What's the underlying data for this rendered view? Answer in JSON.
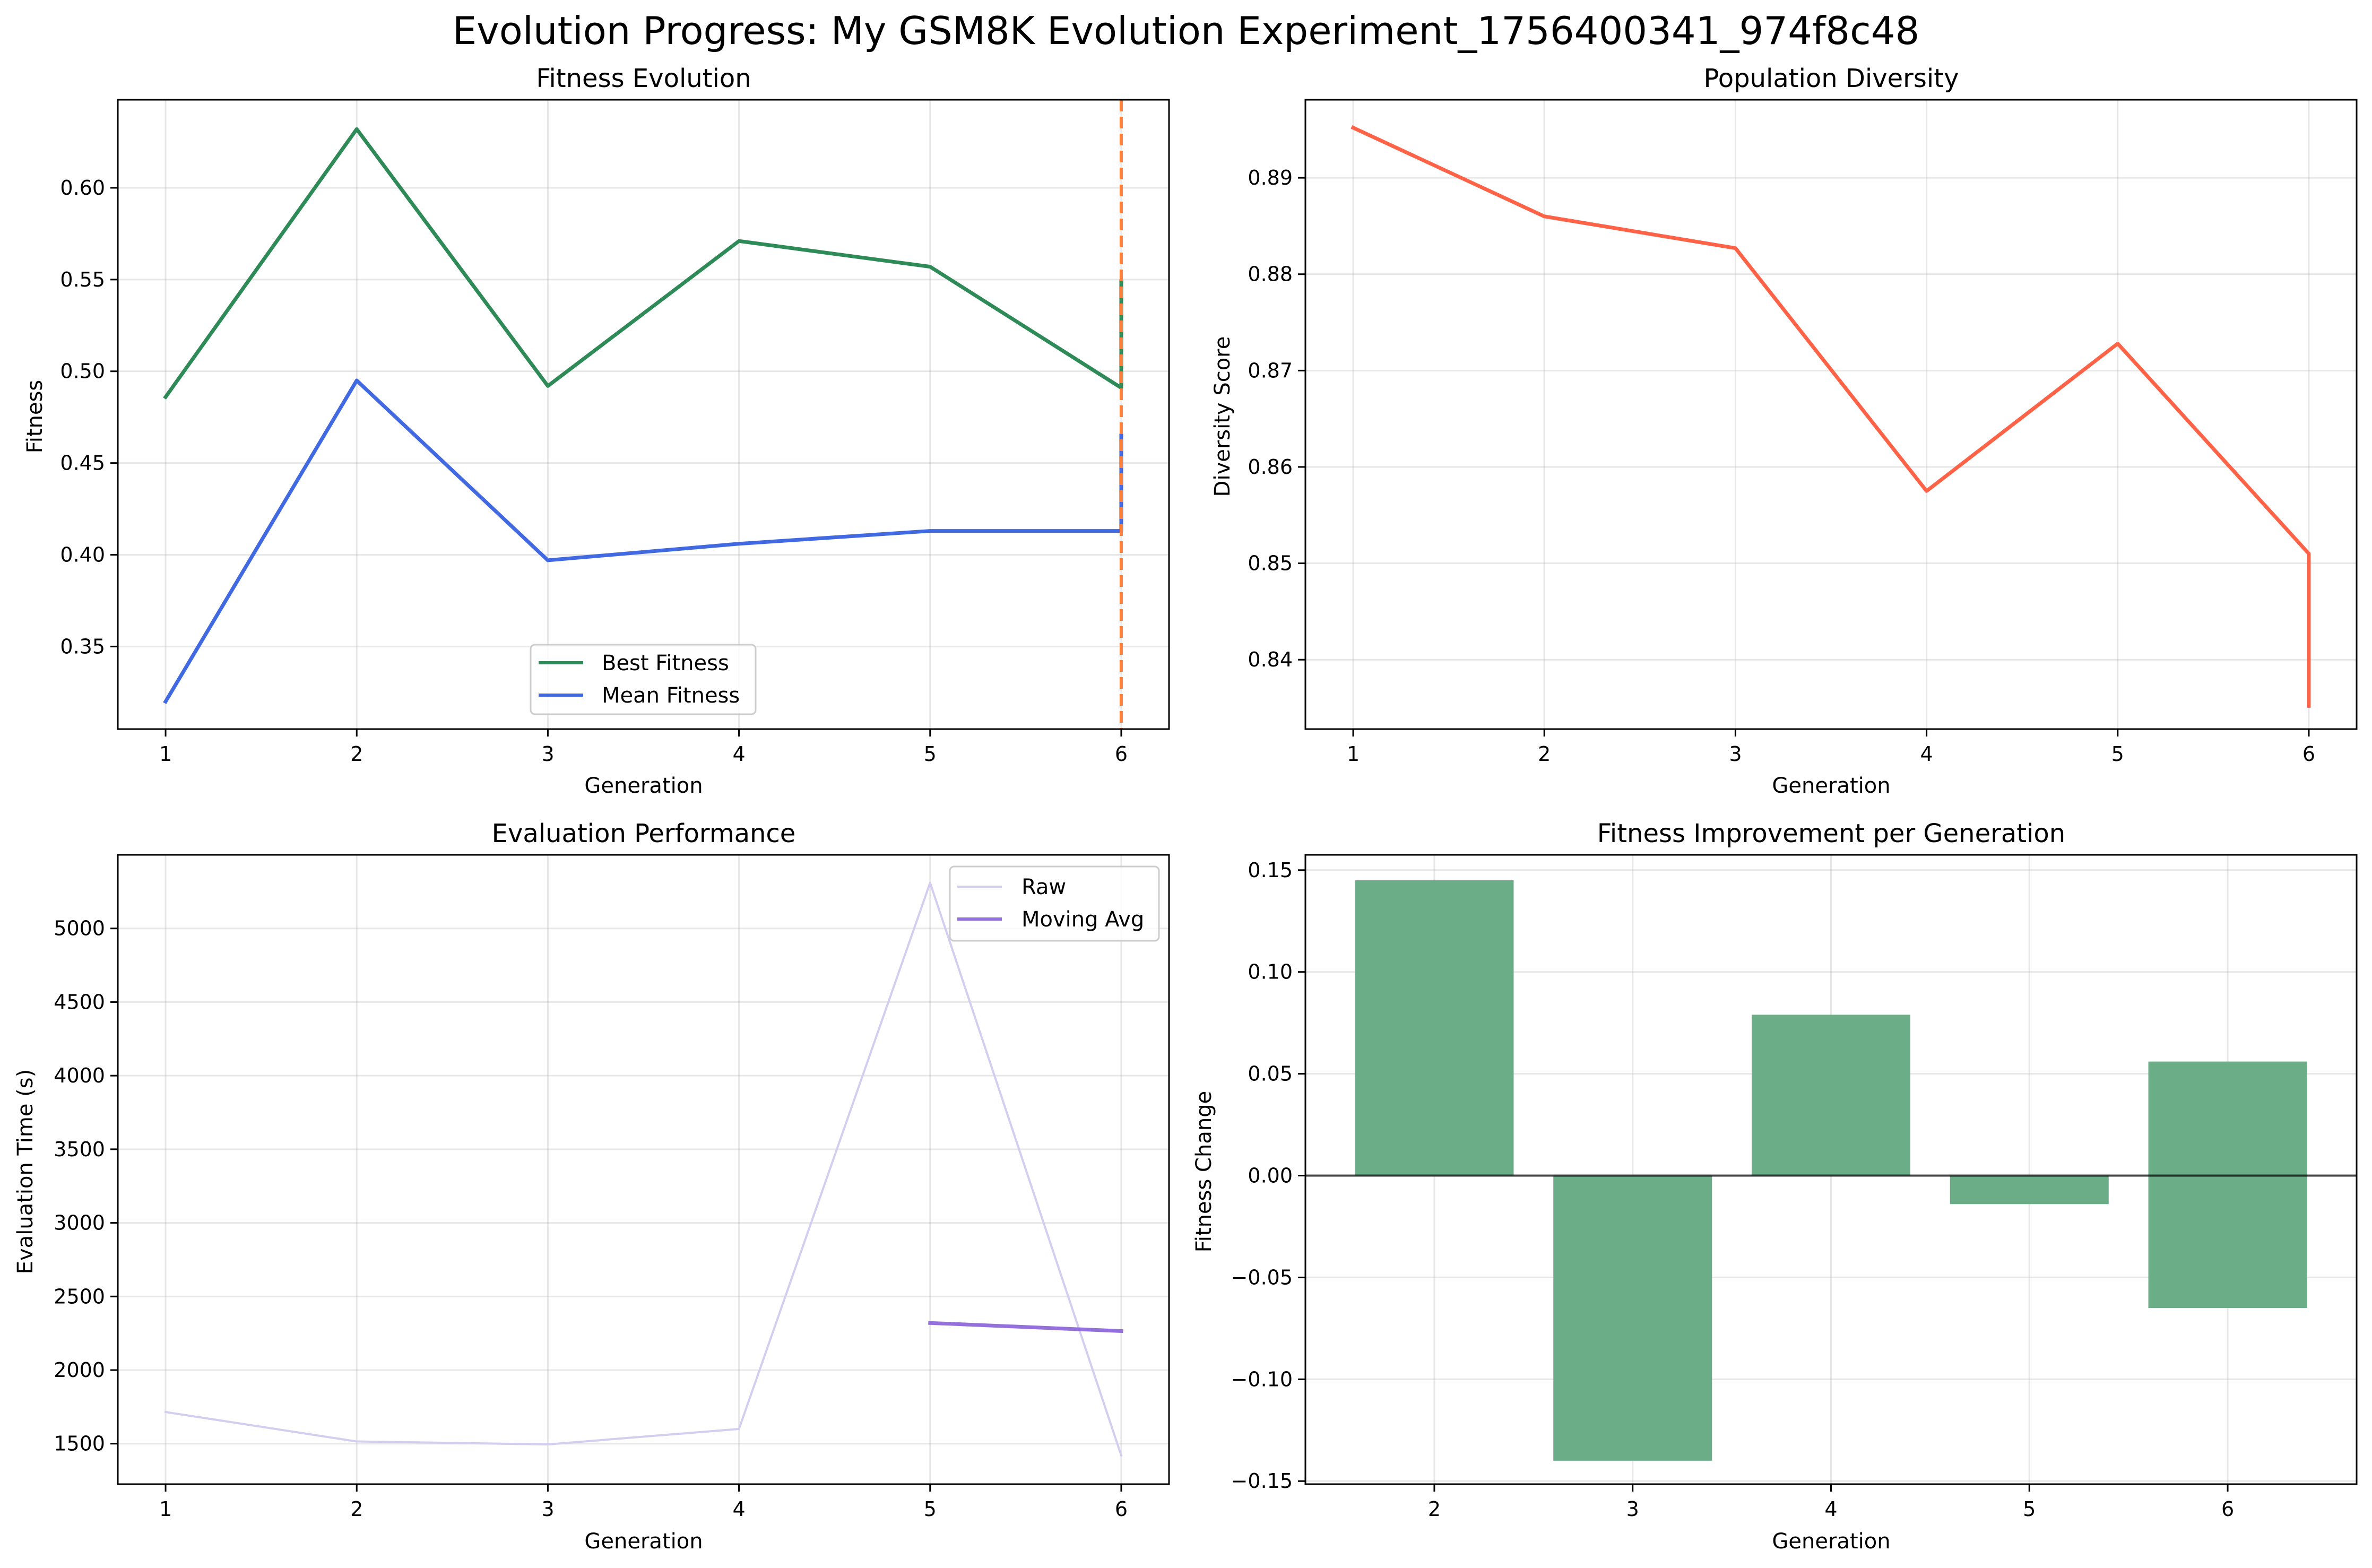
{
  "figure": {
    "title": "Evolution Progress: My GSM8K Evolution Experiment_1756400341_974f8c48"
  },
  "chart_data": [
    {
      "type": "line",
      "title": "Fitness Evolution",
      "xlabel": "Generation",
      "ylabel": "Fitness",
      "x": [
        1,
        2,
        3,
        4,
        5,
        6,
        6
      ],
      "xlim": [
        0.75,
        6.25
      ],
      "ylim": [
        0.305,
        0.648
      ],
      "xticks": [
        1,
        2,
        3,
        4,
        5,
        6
      ],
      "yticks": [
        0.35,
        0.4,
        0.45,
        0.5,
        0.55,
        0.6
      ],
      "ytick_labels": [
        "0.35",
        "0.40",
        "0.45",
        "0.50",
        "0.55",
        "0.60"
      ],
      "grid": true,
      "legend_placement": "lower center",
      "series": [
        {
          "name": "Best Fitness",
          "values": [
            0.486,
            0.632,
            0.492,
            0.571,
            0.557,
            0.491,
            0.549
          ],
          "color": "#2e8b57"
        },
        {
          "name": "Mean Fitness",
          "values": [
            0.32,
            0.495,
            0.397,
            0.406,
            0.413,
            0.413,
            0.465
          ],
          "color": "#4169e1"
        }
      ],
      "vline": {
        "x": 6,
        "color": "#ff7f3e",
        "style": "dashed"
      }
    },
    {
      "type": "line",
      "title": "Population Diversity",
      "xlabel": "Generation",
      "ylabel": "Diversity Score",
      "x": [
        1,
        2,
        3,
        4,
        5,
        6,
        6
      ],
      "xlim": [
        0.75,
        6.25
      ],
      "ylim": [
        0.8328,
        0.8981
      ],
      "xticks": [
        1,
        2,
        3,
        4,
        5,
        6
      ],
      "yticks": [
        0.84,
        0.85,
        0.86,
        0.87,
        0.88,
        0.89
      ],
      "ytick_labels": [
        "0.84",
        "0.85",
        "0.86",
        "0.87",
        "0.88",
        "0.89"
      ],
      "grid": true,
      "series": [
        {
          "values": [
            0.8952,
            0.886,
            0.8827,
            0.8575,
            0.8728,
            0.851,
            0.8352
          ],
          "color": "#ff6347"
        }
      ]
    },
    {
      "type": "line",
      "title": "Evaluation Performance",
      "xlabel": "Generation",
      "ylabel": "Evaluation Time (s)",
      "xlim": [
        0.75,
        6.25
      ],
      "ylim": [
        1225,
        5500
      ],
      "xticks": [
        1,
        2,
        3,
        4,
        5,
        6
      ],
      "yticks": [
        1500,
        2000,
        2500,
        3000,
        3500,
        4000,
        4500,
        5000
      ],
      "ytick_labels": [
        "1500",
        "2000",
        "2500",
        "3000",
        "3500",
        "4000",
        "4500",
        "5000"
      ],
      "grid": true,
      "legend_placement": "upper right",
      "series": [
        {
          "name": "Raw",
          "x": [
            1,
            2,
            3,
            4,
            5,
            6
          ],
          "values": [
            1715,
            1515,
            1495,
            1600,
            5310,
            1420
          ],
          "color": "#d4cdf0"
        },
        {
          "name": "Moving Avg",
          "x": [
            5,
            6
          ],
          "values": [
            2320,
            2265
          ],
          "color": "#9370db"
        }
      ]
    },
    {
      "type": "bar",
      "title": "Fitness Improvement per Generation",
      "xlabel": "Generation",
      "ylabel": "Fitness Change",
      "categories": [
        2,
        3,
        4,
        5,
        6
      ],
      "values": [
        0.145,
        -0.14,
        0.079,
        -0.014,
        0.056
      ],
      "values_lower": [
        0.0,
        0.0,
        0.0,
        0.0,
        -0.065
      ],
      "xlim": [
        1.35,
        6.65
      ],
      "ylim": [
        -0.1515,
        0.1575
      ],
      "yticks": [
        -0.15,
        -0.1,
        -0.05,
        0.0,
        0.05,
        0.1,
        0.15
      ],
      "ytick_labels": [
        "−0.15",
        "−0.10",
        "−0.05",
        "0.00",
        "0.05",
        "0.10",
        "0.15"
      ],
      "grid": true,
      "color": "#6aad87",
      "zero_line": true
    }
  ]
}
